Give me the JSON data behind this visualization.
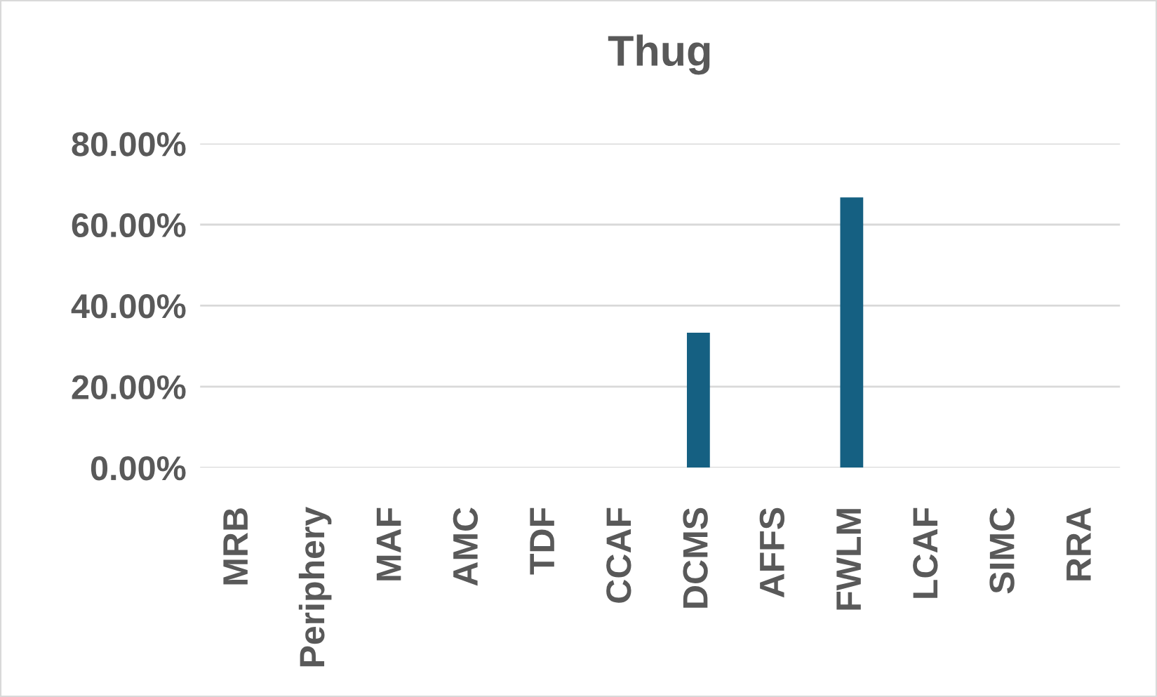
{
  "chart_data": {
    "type": "bar",
    "title": "Thug",
    "categories": [
      "MRB",
      "Periphery",
      "MAF",
      "AMC",
      "TDF",
      "CCAF",
      "DCMS",
      "AFFS",
      "FWLM",
      "LCAF",
      "SIMC",
      "RRA"
    ],
    "values": [
      0,
      0,
      0,
      0,
      0,
      0,
      33.3,
      0,
      66.7,
      0,
      0,
      0
    ],
    "color": "#156082",
    "ylim": [
      0,
      80
    ],
    "yticks": [
      {
        "value": 0,
        "label": "0.00%"
      },
      {
        "value": 20,
        "label": "20.00%"
      },
      {
        "value": 40,
        "label": "40.00%"
      },
      {
        "value": 60,
        "label": "60.00%"
      },
      {
        "value": 80,
        "label": "80.00%"
      }
    ],
    "grid": "y"
  }
}
